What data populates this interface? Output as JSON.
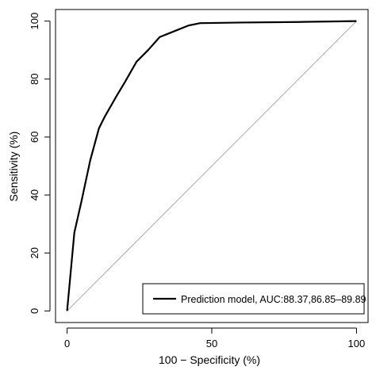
{
  "chart_data": {
    "type": "line",
    "title": "",
    "xlabel": "100 − Specificity (%)",
    "ylabel": "Sensitivity (%)",
    "xlim": [
      -4,
      104
    ],
    "ylim": [
      -4,
      104
    ],
    "xticks": [
      0,
      50,
      100
    ],
    "yticks": [
      0,
      20,
      40,
      60,
      80,
      100
    ],
    "grid": false,
    "legend_position": "bottom-right",
    "series": [
      {
        "name": "Prediction model, AUC:88.37,86.85–89.89",
        "color": "#000000",
        "x": [
          0,
          2.5,
          5,
          8,
          11,
          13,
          17,
          20,
          24,
          28,
          32,
          37,
          42,
          46,
          60,
          80,
          100
        ],
        "y": [
          0,
          27,
          38,
          52,
          63,
          67,
          74,
          79,
          86,
          90,
          94.5,
          96.5,
          98.5,
          99.3,
          99.5,
          99.7,
          100
        ]
      },
      {
        "name": "",
        "color": "#aaaaaa",
        "x": [
          0,
          100
        ],
        "y": [
          0,
          100
        ]
      }
    ]
  }
}
